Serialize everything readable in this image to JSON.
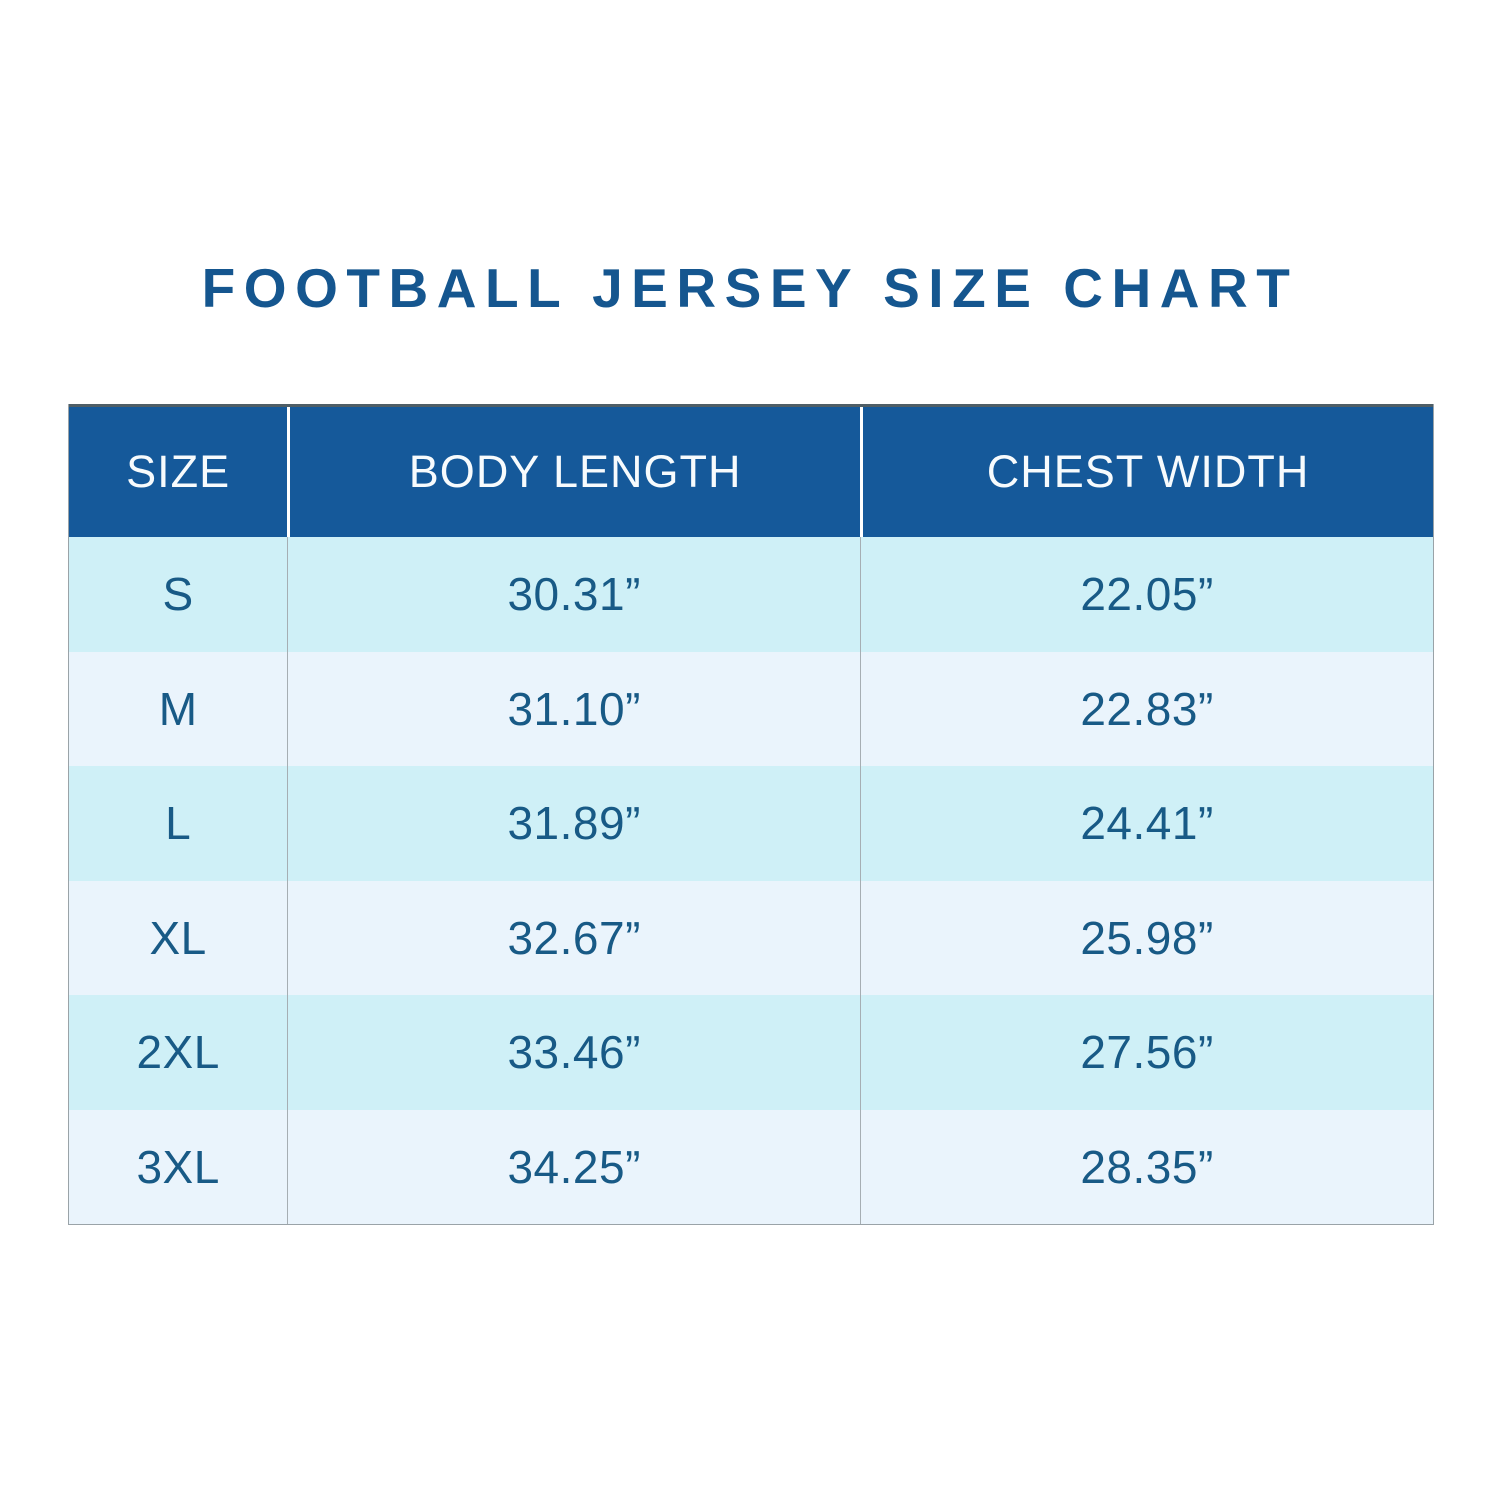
{
  "title": {
    "text": "FOOTBALL JERSEY SIZE CHART",
    "color": "#15568f"
  },
  "table": {
    "header": {
      "columns": [
        "SIZE",
        "BODY LENGTH",
        "CHEST WIDTH"
      ],
      "bg_color": "#15599a",
      "text_color": "#ffffff"
    },
    "rows": [
      {
        "size": "S",
        "body_length": "30.31”",
        "chest_width": "22.05”"
      },
      {
        "size": "M",
        "body_length": "31.10”",
        "chest_width": "22.83”"
      },
      {
        "size": "L",
        "body_length": "31.89”",
        "chest_width": "24.41”"
      },
      {
        "size": "XL",
        "body_length": "32.67”",
        "chest_width": "25.98”"
      },
      {
        "size": "2XL",
        "body_length": "33.46”",
        "chest_width": "27.56”"
      },
      {
        "size": "3XL",
        "body_length": "34.25”",
        "chest_width": "28.35”"
      }
    ],
    "row_color_light": "#eaf4fc",
    "row_color_cyan": "#cff0f7",
    "cell_text_color": "#185a86"
  },
  "chart_data": {
    "type": "table",
    "title": "FOOTBALL JERSEY SIZE CHART",
    "columns": [
      "SIZE",
      "BODY LENGTH",
      "CHEST WIDTH"
    ],
    "rows": [
      [
        "S",
        "30.31”",
        "22.05”"
      ],
      [
        "M",
        "31.10”",
        "22.83”"
      ],
      [
        "L",
        "31.89”",
        "24.41”"
      ],
      [
        "XL",
        "32.67”",
        "25.98”"
      ],
      [
        "2XL",
        "33.46”",
        "27.56”"
      ],
      [
        "3XL",
        "34.25”",
        "28.35”"
      ]
    ],
    "units": "inches",
    "legend_position": "none",
    "grid": false
  }
}
